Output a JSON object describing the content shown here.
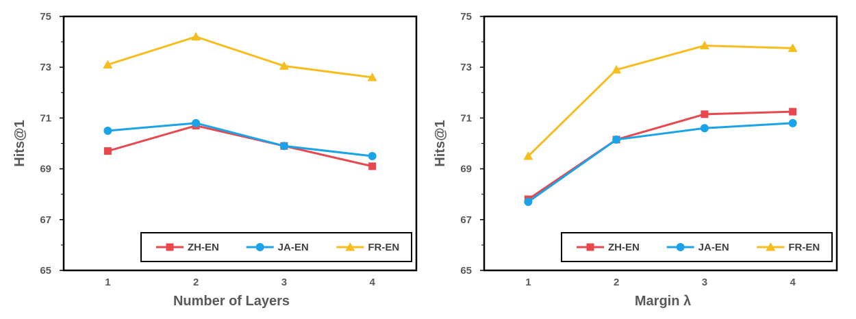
{
  "colors": {
    "ZH-EN": "#e8474e",
    "JA-EN": "#1aa3e8",
    "FR-EN": "#f5be1e",
    "axis": "#000000",
    "text": "#595959"
  },
  "chart_data": [
    {
      "type": "line",
      "xlabel": "Number of Layers",
      "ylabel": "Hits@1",
      "x": [
        1,
        2,
        3,
        4
      ],
      "x_tick_labels": [
        "1",
        "2",
        "3",
        "4"
      ],
      "ylim": [
        65,
        75
      ],
      "y_ticks": [
        65,
        67,
        69,
        71,
        73,
        75
      ],
      "y_tick_labels": [
        "65",
        "67",
        "69",
        "71",
        "73",
        "75"
      ],
      "grid": false,
      "legend_position": "bottom",
      "series": [
        {
          "name": "ZH-EN",
          "marker": "square",
          "values": [
            69.7,
            70.7,
            69.9,
            69.1
          ]
        },
        {
          "name": "JA-EN",
          "marker": "circle",
          "values": [
            70.5,
            70.8,
            69.9,
            69.5
          ]
        },
        {
          "name": "FR-EN",
          "marker": "triangle",
          "values": [
            73.1,
            74.2,
            73.05,
            72.6
          ]
        }
      ]
    },
    {
      "type": "line",
      "xlabel": "Margin λ",
      "ylabel": "Hits@1",
      "x": [
        1,
        2,
        3,
        4
      ],
      "x_tick_labels": [
        "1",
        "2",
        "3",
        "4"
      ],
      "ylim": [
        65,
        75
      ],
      "y_ticks": [
        65,
        67,
        69,
        71,
        73,
        75
      ],
      "y_tick_labels": [
        "65",
        "67",
        "69",
        "71",
        "73",
        "75"
      ],
      "grid": false,
      "legend_position": "bottom",
      "series": [
        {
          "name": "ZH-EN",
          "marker": "square",
          "values": [
            67.8,
            70.15,
            71.15,
            71.25
          ]
        },
        {
          "name": "JA-EN",
          "marker": "circle",
          "values": [
            67.7,
            70.15,
            70.6,
            70.8
          ]
        },
        {
          "name": "FR-EN",
          "marker": "triangle",
          "values": [
            69.5,
            72.9,
            73.85,
            73.75
          ]
        }
      ]
    }
  ]
}
